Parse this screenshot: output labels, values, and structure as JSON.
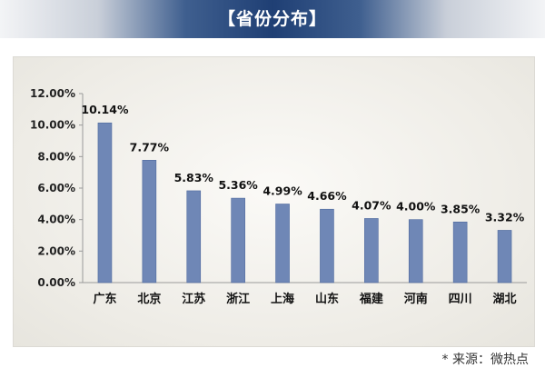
{
  "header": {
    "title": "【省份分布】"
  },
  "footer": {
    "source": "* 来源：微热点"
  },
  "colors": {
    "bar": "#6f87b6",
    "bar_edge": "#4f6a9e",
    "header_accent": "#1f3f74"
  },
  "chart_data": {
    "type": "bar",
    "title": "",
    "xlabel": "",
    "ylabel": "",
    "categories": [
      "广东",
      "北京",
      "江苏",
      "浙江",
      "上海",
      "山东",
      "福建",
      "河南",
      "四川",
      "湖北"
    ],
    "values": [
      10.14,
      7.77,
      5.83,
      5.36,
      4.99,
      4.66,
      4.07,
      4.0,
      3.85,
      3.32
    ],
    "data_labels": [
      "10.14%",
      "7.77%",
      "5.83%",
      "5.36%",
      "4.99%",
      "4.66%",
      "4.07%",
      "4.00%",
      "3.85%",
      "3.32%"
    ],
    "yticks": [
      "0.00%",
      "2.00%",
      "4.00%",
      "6.00%",
      "8.00%",
      "10.00%",
      "12.00%"
    ],
    "ylim": [
      0,
      12
    ],
    "grid": false,
    "legend": "none"
  }
}
